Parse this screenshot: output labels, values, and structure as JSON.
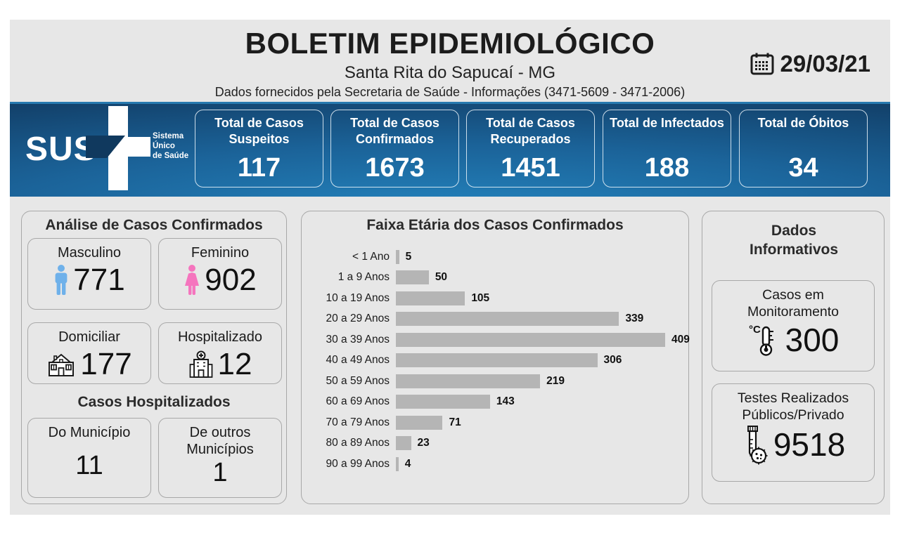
{
  "header": {
    "title": "BOLETIM EPIDEMIOLÓGICO",
    "subtitle": "Santa Rita do Sapucaí - MG",
    "info_line": "Dados fornecidos pela Secretaria de Saúde - Informações (3471-5609 - 3471-2006)",
    "date": "29/03/21"
  },
  "sus": {
    "name": "SUS",
    "tagline_lines": [
      "Sistema",
      "Único",
      "de Saúde"
    ]
  },
  "stats": [
    {
      "label": "Total de Casos Suspeitos",
      "value": "117"
    },
    {
      "label": "Total de Casos Confirmados",
      "value": "1673"
    },
    {
      "label": "Total de Casos Recuperados",
      "value": "1451"
    },
    {
      "label": "Total de Infectados",
      "value": "188"
    },
    {
      "label": "Total de Óbitos",
      "value": "34"
    }
  ],
  "analysis": {
    "title": "Análise de Casos Confirmados",
    "male": {
      "label": "Masculino",
      "value": "771"
    },
    "female": {
      "label": "Feminino",
      "value": "902"
    },
    "home": {
      "label": "Domiciliar",
      "value": "177"
    },
    "hosp": {
      "label": "Hospitalizado",
      "value": "12"
    },
    "hospitalized_heading": "Casos Hospitalizados",
    "municipality": {
      "label": "Do Município",
      "value": "11"
    },
    "other_municipality": {
      "label": "De outros Municípios",
      "value": "1"
    }
  },
  "chart_data": {
    "type": "bar",
    "orientation": "horizontal",
    "title": "Faixa Etária dos Casos Confirmados",
    "categories": [
      "< 1 Ano",
      "1 a 9 Anos",
      "10 a 19 Anos",
      "20 a 29 Anos",
      "30 a 39 Anos",
      "40 a 49 Anos",
      "50 a 59 Anos",
      "60 a 69 Anos",
      "70 a 79 Anos",
      "80 a 89 Anos",
      "90 a 99 Anos"
    ],
    "values": [
      5,
      50,
      105,
      339,
      409,
      306,
      219,
      143,
      71,
      23,
      4
    ],
    "xlim": [
      0,
      440
    ],
    "grid": false,
    "legend": false,
    "bar_color": "#b5b5b5",
    "value_labels": true
  },
  "info_panel": {
    "title": "Dados Informativos",
    "monitoring": {
      "label": "Casos em Monitoramento",
      "value": "300"
    },
    "tests": {
      "label": "Testes Realizados Públicos/Privado",
      "value": "9518"
    }
  },
  "colors": {
    "dashboard_bg": "#e7e7e7",
    "band_blue_light": "#2484be",
    "band_blue_dark": "#0d2c4e",
    "male_icon": "#6fb1ea",
    "female_icon": "#f575be",
    "bar_gray": "#b5b5b5",
    "border_gray": "#a8a8a8"
  }
}
